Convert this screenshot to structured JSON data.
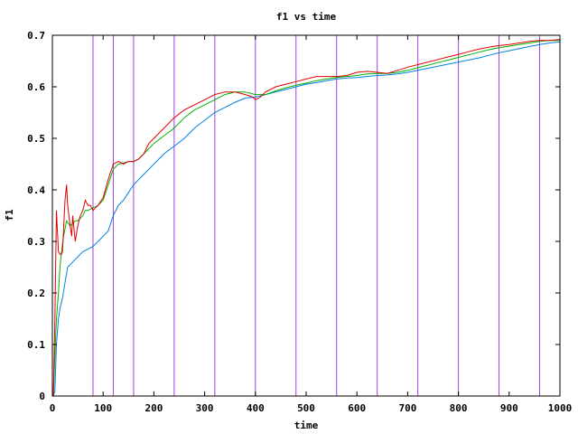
{
  "chart_data": {
    "type": "line",
    "title": "f1 vs time",
    "xlabel": "time",
    "ylabel": "f1",
    "xlim": [
      0,
      1000
    ],
    "ylim": [
      0,
      0.7
    ],
    "x_ticks": [
      0,
      100,
      200,
      300,
      400,
      500,
      600,
      700,
      800,
      900,
      1000
    ],
    "y_ticks": [
      0,
      0.1,
      0.2,
      0.3,
      0.4,
      0.5,
      0.6,
      0.7
    ],
    "x_tick_labels": [
      "0",
      "100",
      "200",
      "300",
      "400",
      "500",
      "600",
      "700",
      "800",
      "900",
      "1000"
    ],
    "y_tick_labels": [
      "0",
      "0.1",
      "0.2",
      "0.3",
      "0.4",
      "0.5",
      "0.6",
      "0.7"
    ],
    "grid": false,
    "vertical_markers": [
      80,
      120,
      160,
      240,
      320,
      400,
      480,
      560,
      640,
      720,
      800,
      880,
      960
    ],
    "colors": {
      "markers": "#a040e0",
      "red": "#e00000",
      "green": "#00b000",
      "blue": "#0080e0"
    },
    "series": [
      {
        "color": "#e00000",
        "x": [
          2,
          5,
          8,
          12,
          15,
          18,
          20,
          25,
          28,
          30,
          35,
          38,
          40,
          45,
          50,
          55,
          60,
          65,
          70,
          75,
          80,
          90,
          100,
          110,
          120,
          130,
          140,
          150,
          160,
          170,
          180,
          190,
          200,
          220,
          240,
          260,
          280,
          300,
          320,
          340,
          360,
          380,
          395,
          400,
          410,
          420,
          440,
          460,
          480,
          500,
          520,
          540,
          560,
          580,
          600,
          620,
          640,
          660,
          680,
          700,
          720,
          740,
          760,
          780,
          800,
          820,
          840,
          860,
          880,
          900,
          920,
          940,
          960,
          980,
          1000
        ],
        "y": [
          0.0,
          0.15,
          0.36,
          0.28,
          0.275,
          0.275,
          0.28,
          0.38,
          0.41,
          0.37,
          0.33,
          0.31,
          0.35,
          0.3,
          0.33,
          0.35,
          0.36,
          0.38,
          0.37,
          0.37,
          0.36,
          0.37,
          0.385,
          0.42,
          0.45,
          0.455,
          0.45,
          0.455,
          0.455,
          0.46,
          0.47,
          0.49,
          0.5,
          0.52,
          0.54,
          0.555,
          0.565,
          0.575,
          0.585,
          0.59,
          0.59,
          0.585,
          0.58,
          0.575,
          0.58,
          0.59,
          0.6,
          0.605,
          0.61,
          0.615,
          0.62,
          0.62,
          0.62,
          0.622,
          0.628,
          0.63,
          0.628,
          0.626,
          0.632,
          0.638,
          0.643,
          0.648,
          0.653,
          0.658,
          0.663,
          0.668,
          0.673,
          0.677,
          0.68,
          0.682,
          0.685,
          0.688,
          0.69,
          0.69,
          0.692
        ]
      },
      {
        "color": "#00b000",
        "x": [
          2,
          5,
          8,
          12,
          15,
          18,
          22,
          28,
          35,
          40,
          45,
          50,
          55,
          60,
          65,
          70,
          80,
          90,
          100,
          110,
          120,
          130,
          140,
          150,
          160,
          170,
          180,
          200,
          220,
          240,
          260,
          280,
          300,
          320,
          340,
          360,
          380,
          400,
          420,
          440,
          460,
          480,
          500,
          520,
          540,
          560,
          580,
          600,
          620,
          640,
          660,
          680,
          700,
          720,
          740,
          760,
          780,
          800,
          820,
          840,
          860,
          880,
          900,
          920,
          940,
          960,
          980,
          1000
        ],
        "y": [
          0.0,
          0.08,
          0.15,
          0.2,
          0.25,
          0.28,
          0.31,
          0.34,
          0.33,
          0.335,
          0.34,
          0.34,
          0.345,
          0.35,
          0.36,
          0.36,
          0.365,
          0.37,
          0.38,
          0.41,
          0.44,
          0.45,
          0.452,
          0.455,
          0.455,
          0.46,
          0.47,
          0.49,
          0.505,
          0.52,
          0.54,
          0.555,
          0.565,
          0.575,
          0.585,
          0.59,
          0.59,
          0.585,
          0.585,
          0.592,
          0.598,
          0.603,
          0.607,
          0.612,
          0.615,
          0.618,
          0.62,
          0.622,
          0.625,
          0.626,
          0.626,
          0.628,
          0.632,
          0.637,
          0.642,
          0.647,
          0.652,
          0.657,
          0.662,
          0.667,
          0.672,
          0.676,
          0.679,
          0.682,
          0.685,
          0.688,
          0.69,
          0.69
        ]
      },
      {
        "color": "#0080e0",
        "x": [
          2,
          5,
          8,
          12,
          15,
          20,
          25,
          30,
          40,
          50,
          60,
          70,
          80,
          90,
          100,
          110,
          120,
          130,
          140,
          160,
          180,
          200,
          220,
          240,
          260,
          280,
          300,
          320,
          340,
          360,
          380,
          400,
          420,
          440,
          460,
          480,
          500,
          520,
          540,
          560,
          580,
          600,
          620,
          640,
          660,
          680,
          700,
          720,
          740,
          760,
          780,
          800,
          820,
          840,
          860,
          880,
          900,
          920,
          940,
          960,
          980,
          1000
        ],
        "y": [
          0.0,
          0.01,
          0.1,
          0.15,
          0.17,
          0.19,
          0.22,
          0.25,
          0.26,
          0.27,
          0.28,
          0.285,
          0.29,
          0.3,
          0.31,
          0.32,
          0.35,
          0.37,
          0.38,
          0.41,
          0.43,
          0.45,
          0.47,
          0.485,
          0.5,
          0.52,
          0.535,
          0.55,
          0.56,
          0.57,
          0.578,
          0.58,
          0.585,
          0.59,
          0.595,
          0.6,
          0.605,
          0.608,
          0.612,
          0.615,
          0.617,
          0.618,
          0.62,
          0.622,
          0.623,
          0.625,
          0.628,
          0.632,
          0.636,
          0.64,
          0.644,
          0.648,
          0.652,
          0.656,
          0.661,
          0.666,
          0.67,
          0.674,
          0.678,
          0.682,
          0.685,
          0.687
        ]
      }
    ]
  }
}
